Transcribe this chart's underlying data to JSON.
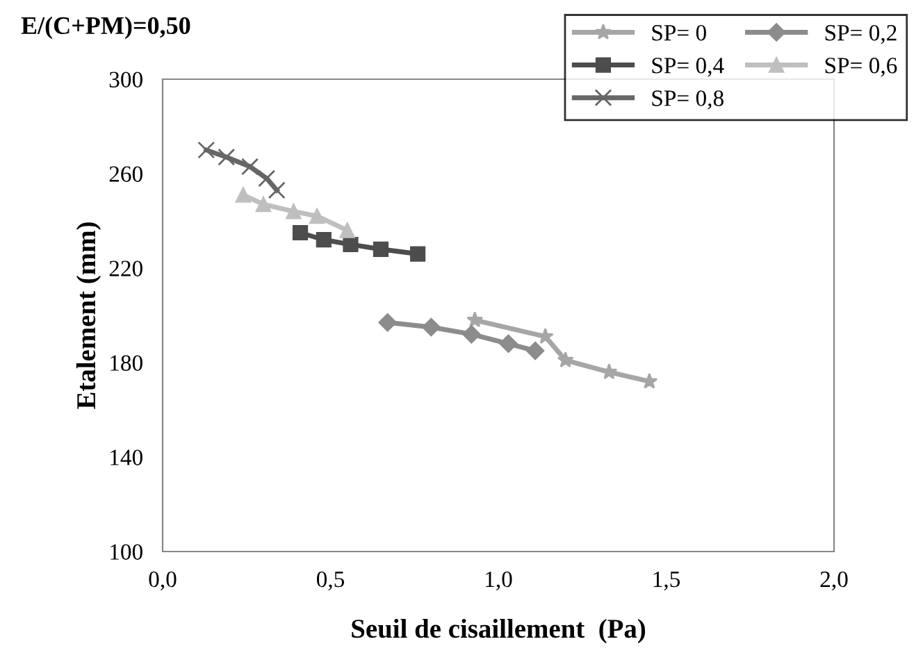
{
  "chart_data": {
    "type": "line",
    "title": "E/(C+PM)=0,50",
    "xlabel": "Seuil de cisaillement  (Pa)",
    "ylabel": "Etalement (mm)",
    "xlim": [
      0,
      2
    ],
    "ylim": [
      100,
      300
    ],
    "xticks": [
      {
        "value": 0,
        "label": "0,0"
      },
      {
        "value": 0.5,
        "label": "0,5"
      },
      {
        "value": 1,
        "label": "1,0"
      },
      {
        "value": 1.5,
        "label": "1,5"
      },
      {
        "value": 2,
        "label": "2,0"
      }
    ],
    "yticks": [
      100,
      140,
      180,
      220,
      260,
      300
    ],
    "grid": false,
    "legend": "top right",
    "series": [
      {
        "name": "SP= 0",
        "color": "#a6a6a6",
        "marker": "star",
        "x": [
          0.93,
          1.14,
          1.2,
          1.33,
          1.45
        ],
        "values": [
          198,
          191,
          181,
          176,
          172
        ]
      },
      {
        "name": "SP= 0,2",
        "color": "#8c8c8c",
        "marker": "diamond",
        "x": [
          0.67,
          0.8,
          0.92,
          1.03,
          1.11
        ],
        "values": [
          197,
          195,
          192,
          188,
          185
        ]
      },
      {
        "name": "SP= 0,4",
        "color": "#4d4d4d",
        "marker": "square",
        "x": [
          0.41,
          0.48,
          0.56,
          0.65,
          0.76
        ],
        "values": [
          235,
          232,
          230,
          228,
          226
        ]
      },
      {
        "name": "SP= 0,6",
        "color": "#bfbfbf",
        "marker": "triangle",
        "x": [
          0.24,
          0.3,
          0.39,
          0.46,
          0.55
        ],
        "values": [
          251,
          247,
          244,
          242,
          236
        ]
      },
      {
        "name": "SP= 0,8",
        "color": "#666666",
        "marker": "cross",
        "x": [
          0.13,
          0.19,
          0.26,
          0.31,
          0.34
        ],
        "values": [
          270,
          267,
          263,
          258,
          253
        ]
      }
    ]
  }
}
